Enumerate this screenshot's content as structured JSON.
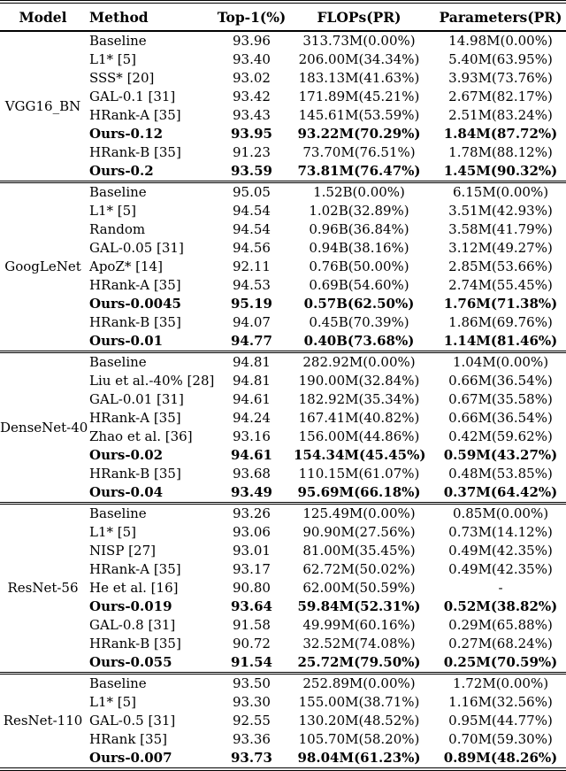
{
  "colors": {
    "background": "#ffffff",
    "text": "#000000",
    "rule": "#000000"
  },
  "table": {
    "headers": [
      "Model",
      "Method",
      "Top-1(%)",
      "FLOPs(PR)",
      "Parameters(PR)"
    ],
    "sections": [
      {
        "model": "VGG16_BN",
        "rows": [
          {
            "method": "Baseline",
            "top1": "93.96",
            "flops": "313.73M(0.00%)",
            "params": "14.98M(0.00%)",
            "bold": false
          },
          {
            "method": "L1* [5]",
            "top1": "93.40",
            "flops": "206.00M(34.34%)",
            "params": "5.40M(63.95%)",
            "bold": false
          },
          {
            "method": "SSS* [20]",
            "top1": "93.02",
            "flops": "183.13M(41.63%)",
            "params": "3.93M(73.76%)",
            "bold": false
          },
          {
            "method": "GAL-0.1 [31]",
            "top1": "93.42",
            "flops": "171.89M(45.21%)",
            "params": "2.67M(82.17%)",
            "bold": false
          },
          {
            "method": "HRank-A [35]",
            "top1": "93.43",
            "flops": "145.61M(53.59%)",
            "params": "2.51M(83.24%)",
            "bold": false
          },
          {
            "method": "Ours-0.12",
            "top1": "93.95",
            "flops": "93.22M(70.29%)",
            "params": "1.84M(87.72%)",
            "bold": true
          },
          {
            "method": "HRank-B [35]",
            "top1": "91.23",
            "flops": "73.70M(76.51%)",
            "params": "1.78M(88.12%)",
            "bold": false
          },
          {
            "method": "Ours-0.2",
            "top1": "93.59",
            "flops": "73.81M(76.47%)",
            "params": "1.45M(90.32%)",
            "bold": true
          }
        ]
      },
      {
        "model": "GoogLeNet",
        "rows": [
          {
            "method": "Baseline",
            "top1": "95.05",
            "flops": "1.52B(0.00%)",
            "params": "6.15M(0.00%)",
            "bold": false
          },
          {
            "method": "L1* [5]",
            "top1": "94.54",
            "flops": "1.02B(32.89%)",
            "params": "3.51M(42.93%)",
            "bold": false
          },
          {
            "method": "Random",
            "top1": "94.54",
            "flops": "0.96B(36.84%)",
            "params": "3.58M(41.79%)",
            "bold": false
          },
          {
            "method": "GAL-0.05 [31]",
            "top1": "94.56",
            "flops": "0.94B(38.16%)",
            "params": "3.12M(49.27%)",
            "bold": false
          },
          {
            "method": "ApoZ* [14]",
            "top1": "92.11",
            "flops": "0.76B(50.00%)",
            "params": "2.85M(53.66%)",
            "bold": false
          },
          {
            "method": "HRank-A [35]",
            "top1": "94.53",
            "flops": "0.69B(54.60%)",
            "params": "2.74M(55.45%)",
            "bold": false
          },
          {
            "method": "Ours-0.0045",
            "top1": "95.19",
            "flops": "0.57B(62.50%)",
            "params": "1.76M(71.38%)",
            "bold": true
          },
          {
            "method": "HRank-B [35]",
            "top1": "94.07",
            "flops": "0.45B(70.39%)",
            "params": "1.86M(69.76%)",
            "bold": false
          },
          {
            "method": "Ours-0.01",
            "top1": "94.77",
            "flops": "0.40B(73.68%)",
            "params": "1.14M(81.46%)",
            "bold": true
          }
        ]
      },
      {
        "model": "DenseNet-40",
        "rows": [
          {
            "method": "Baseline",
            "top1": "94.81",
            "flops": "282.92M(0.00%)",
            "params": "1.04M(0.00%)",
            "bold": false
          },
          {
            "method": "Liu et al.-40% [28]",
            "top1": "94.81",
            "flops": "190.00M(32.84%)",
            "params": "0.66M(36.54%)",
            "bold": false
          },
          {
            "method": "GAL-0.01 [31]",
            "top1": "94.61",
            "flops": "182.92M(35.34%)",
            "params": "0.67M(35.58%)",
            "bold": false
          },
          {
            "method": "HRank-A [35]",
            "top1": "94.24",
            "flops": "167.41M(40.82%)",
            "params": "0.66M(36.54%)",
            "bold": false
          },
          {
            "method": "Zhao et al. [36]",
            "top1": "93.16",
            "flops": "156.00M(44.86%)",
            "params": "0.42M(59.62%)",
            "bold": false
          },
          {
            "method": "Ours-0.02",
            "top1": "94.61",
            "flops": "154.34M(45.45%)",
            "params": "0.59M(43.27%)",
            "bold": true
          },
          {
            "method": "HRank-B [35]",
            "top1": "93.68",
            "flops": "110.15M(61.07%)",
            "params": "0.48M(53.85%)",
            "bold": false
          },
          {
            "method": "Ours-0.04",
            "top1": "93.49",
            "flops": "95.69M(66.18%)",
            "params": "0.37M(64.42%)",
            "bold": true
          }
        ]
      },
      {
        "model": "ResNet-56",
        "rows": [
          {
            "method": "Baseline",
            "top1": "93.26",
            "flops": "125.49M(0.00%)",
            "params": "0.85M(0.00%)",
            "bold": false
          },
          {
            "method": "L1* [5]",
            "top1": "93.06",
            "flops": "90.90M(27.56%)",
            "params": "0.73M(14.12%)",
            "bold": false
          },
          {
            "method": "NISP [27]",
            "top1": "93.01",
            "flops": "81.00M(35.45%)",
            "params": "0.49M(42.35%)",
            "bold": false
          },
          {
            "method": "HRank-A [35]",
            "top1": "93.17",
            "flops": "62.72M(50.02%)",
            "params": "0.49M(42.35%)",
            "bold": false
          },
          {
            "method": "He et al. [16]",
            "top1": "90.80",
            "flops": "62.00M(50.59%)",
            "params": "-",
            "bold": false
          },
          {
            "method": "Ours-0.019",
            "top1": "93.64",
            "flops": "59.84M(52.31%)",
            "params": "0.52M(38.82%)",
            "bold": true
          },
          {
            "method": "GAL-0.8 [31]",
            "top1": "91.58",
            "flops": "49.99M(60.16%)",
            "params": "0.29M(65.88%)",
            "bold": false
          },
          {
            "method": "HRank-B [35]",
            "top1": "90.72",
            "flops": "32.52M(74.08%)",
            "params": "0.27M(68.24%)",
            "bold": false
          },
          {
            "method": "Ours-0.055",
            "top1": "91.54",
            "flops": "25.72M(79.50%)",
            "params": "0.25M(70.59%)",
            "bold": true
          }
        ]
      },
      {
        "model": "ResNet-110",
        "rows": [
          {
            "method": "Baseline",
            "top1": "93.50",
            "flops": "252.89M(0.00%)",
            "params": "1.72M(0.00%)",
            "bold": false
          },
          {
            "method": "L1* [5]",
            "top1": "93.30",
            "flops": "155.00M(38.71%)",
            "params": "1.16M(32.56%)",
            "bold": false
          },
          {
            "method": "GAL-0.5 [31]",
            "top1": "92.55",
            "flops": "130.20M(48.52%)",
            "params": "0.95M(44.77%)",
            "bold": false
          },
          {
            "method": "HRank [35]",
            "top1": "93.36",
            "flops": "105.70M(58.20%)",
            "params": "0.70M(59.30%)",
            "bold": false
          },
          {
            "method": "Ours-0.007",
            "top1": "93.73",
            "flops": "98.04M(61.23%)",
            "params": "0.89M(48.26%)",
            "bold": true
          }
        ]
      }
    ]
  }
}
